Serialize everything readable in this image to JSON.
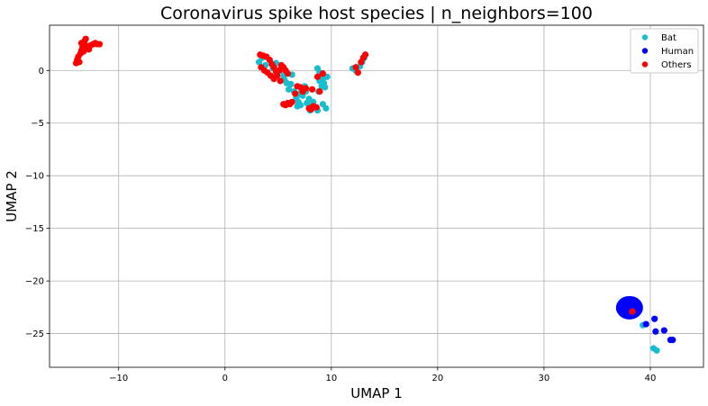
{
  "chart_data": {
    "type": "scatter",
    "title": "Coronavirus spike host species | n_neighbors=100",
    "xlabel": "UMAP 1",
    "ylabel": "UMAP 2",
    "xlim": [
      -16.5,
      45
    ],
    "ylim": [
      -28.2,
      4.3
    ],
    "xticks": [
      -10,
      0,
      10,
      20,
      30,
      40
    ],
    "yticks": [
      0,
      -5,
      -10,
      -15,
      -20,
      -25
    ],
    "xtick_labels": [
      "−10",
      "0",
      "10",
      "20",
      "30",
      "40"
    ],
    "ytick_labels": [
      "0",
      "−5",
      "−10",
      "−15",
      "−20",
      "−25"
    ],
    "grid": true,
    "legend_position": "top-right",
    "series": [
      {
        "name": "Bat",
        "color": "#17becf",
        "points": [
          [
            3.2,
            0.8
          ],
          [
            3.5,
            1.2
          ],
          [
            3.8,
            0.5
          ],
          [
            4.2,
            1.0
          ],
          [
            4.5,
            0.2
          ],
          [
            4.8,
            0.7
          ],
          [
            5.2,
            0.0
          ],
          [
            5.5,
            -0.5
          ],
          [
            5.8,
            -1.2
          ],
          [
            6.0,
            -1.8
          ],
          [
            6.2,
            -1.3
          ],
          [
            6.5,
            -2.0
          ],
          [
            6.7,
            -2.6
          ],
          [
            6.9,
            -3.0
          ],
          [
            7.1,
            -3.3
          ],
          [
            7.3,
            -2.4
          ],
          [
            7.5,
            -1.5
          ],
          [
            7.7,
            -3.1
          ],
          [
            7.9,
            -2.7
          ],
          [
            8.1,
            -3.4
          ],
          [
            8.3,
            -3.0
          ],
          [
            8.5,
            -3.5
          ],
          [
            8.7,
            -3.8
          ],
          [
            8.8,
            -2.0
          ],
          [
            8.9,
            -1.0
          ],
          [
            9.0,
            -0.5
          ],
          [
            9.1,
            -1.5
          ],
          [
            9.2,
            -0.8
          ],
          [
            9.3,
            -1.2
          ],
          [
            9.4,
            -1.6
          ],
          [
            9.5,
            -3.6
          ],
          [
            9.6,
            -0.6
          ],
          [
            9.2,
            -3.2
          ],
          [
            8.7,
            0.2
          ],
          [
            8.9,
            -0.2
          ],
          [
            6.3,
            -0.4
          ],
          [
            7.0,
            -2.2
          ],
          [
            7.6,
            -2.0
          ],
          [
            8.0,
            -3.8
          ],
          [
            6.8,
            -3.4
          ],
          [
            5.6,
            -0.9
          ],
          [
            4.9,
            -0.3
          ],
          [
            12.0,
            0.2
          ],
          [
            12.3,
            0.0
          ],
          [
            12.5,
            -0.2
          ],
          [
            12.7,
            0.4
          ],
          [
            12.9,
            0.8
          ],
          [
            13.1,
            1.2
          ],
          [
            39.3,
            -24.2
          ],
          [
            40.3,
            -26.4
          ],
          [
            40.6,
            -26.6
          ]
        ]
      },
      {
        "name": "Human",
        "color": "#0000ff",
        "points": [
          [
            37.6,
            -22.0
          ],
          [
            38.0,
            -22.2
          ],
          [
            38.4,
            -22.0
          ],
          [
            37.8,
            -22.6
          ],
          [
            38.2,
            -22.8
          ],
          [
            38.5,
            -22.4
          ],
          [
            37.5,
            -22.5
          ],
          [
            38.0,
            -23.0
          ],
          [
            38.3,
            -23.2
          ],
          [
            37.7,
            -23.0
          ],
          [
            38.6,
            -22.8
          ],
          [
            38.1,
            -21.8
          ],
          [
            37.9,
            -22.3
          ],
          [
            38.4,
            -22.6
          ],
          [
            37.6,
            -22.9
          ],
          [
            39.6,
            -24.1
          ],
          [
            40.4,
            -23.6
          ],
          [
            40.5,
            -24.8
          ],
          [
            41.3,
            -24.7
          ],
          [
            41.9,
            -25.6
          ],
          [
            42.1,
            -25.6
          ]
        ]
      },
      {
        "name": "Others",
        "color": "#ff0000",
        "points": [
          [
            -14.0,
            0.7
          ],
          [
            -13.9,
            1.0
          ],
          [
            -13.8,
            1.3
          ],
          [
            -13.7,
            0.8
          ],
          [
            -13.6,
            1.6
          ],
          [
            -13.5,
            1.9
          ],
          [
            -13.4,
            2.2
          ],
          [
            -13.3,
            2.5
          ],
          [
            -13.2,
            2.8
          ],
          [
            -13.1,
            3.0
          ],
          [
            -13.0,
            2.3
          ],
          [
            -12.8,
            2.0
          ],
          [
            -12.6,
            2.4
          ],
          [
            -12.4,
            2.5
          ],
          [
            -12.2,
            2.6
          ],
          [
            -12.0,
            2.5
          ],
          [
            -11.8,
            2.5
          ],
          [
            -13.5,
            2.6
          ],
          [
            -13.3,
            1.8
          ],
          [
            3.3,
            1.5
          ],
          [
            3.6,
            1.4
          ],
          [
            3.9,
            1.3
          ],
          [
            4.2,
            1.0
          ],
          [
            4.4,
            0.6
          ],
          [
            4.6,
            0.3
          ],
          [
            3.4,
            0.3
          ],
          [
            3.7,
            0.0
          ],
          [
            4.0,
            -0.2
          ],
          [
            4.3,
            -0.5
          ],
          [
            4.6,
            -0.8
          ],
          [
            4.9,
            -0.5
          ],
          [
            5.1,
            0.0
          ],
          [
            5.3,
            0.5
          ],
          [
            5.5,
            0.3
          ],
          [
            5.7,
            0.0
          ],
          [
            5.9,
            -0.3
          ],
          [
            5.2,
            -1.0
          ],
          [
            4.8,
            -0.1
          ],
          [
            5.5,
            -3.2
          ],
          [
            5.7,
            -3.3
          ],
          [
            5.9,
            -3.1
          ],
          [
            6.1,
            -3.2
          ],
          [
            6.3,
            -3.0
          ],
          [
            6.8,
            -1.5
          ],
          [
            7.1,
            -1.6
          ],
          [
            7.3,
            -2.0
          ],
          [
            7.6,
            -1.7
          ],
          [
            7.9,
            -3.6
          ],
          [
            8.1,
            -3.7
          ],
          [
            8.3,
            -3.4
          ],
          [
            8.6,
            -3.5
          ],
          [
            8.9,
            -2.0
          ],
          [
            8.7,
            -0.6
          ],
          [
            9.2,
            -0.3
          ],
          [
            8.2,
            -1.8
          ],
          [
            6.6,
            -2.2
          ],
          [
            12.3,
            0.3
          ],
          [
            12.5,
            -0.2
          ],
          [
            12.8,
            0.8
          ],
          [
            13.0,
            1.2
          ],
          [
            13.2,
            1.5
          ],
          [
            38.3,
            -22.9
          ]
        ]
      }
    ]
  }
}
